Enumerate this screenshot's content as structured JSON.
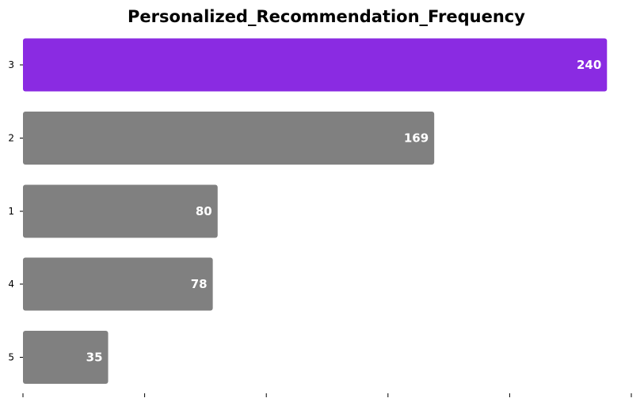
{
  "chart_data": {
    "type": "bar",
    "orientation": "horizontal",
    "title": "Personalized_Recommendation_Frequency",
    "xlabel": "",
    "ylabel": "",
    "categories": [
      "3",
      "2",
      "1",
      "4",
      "5"
    ],
    "values": [
      240,
      169,
      80,
      78,
      35
    ],
    "xlim": [
      0,
      250
    ],
    "grid": false,
    "data_labels": true,
    "colors": {
      "highlight": "#8a2be2",
      "default": "#808080"
    }
  }
}
